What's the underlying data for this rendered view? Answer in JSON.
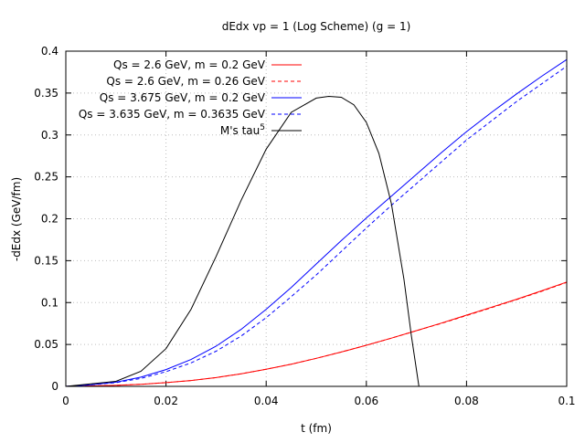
{
  "chart_data": {
    "type": "line",
    "title": "dEdx vp = 1 (Log Scheme) (g = 1)",
    "xlabel": "t (fm)",
    "ylabel": "-dEdx (GeV/fm)",
    "xlim": [
      0,
      0.1
    ],
    "ylim": [
      0,
      0.4
    ],
    "x_ticks": [
      0,
      0.02,
      0.04,
      0.06,
      0.08,
      0.1
    ],
    "x_tick_labels": [
      "0",
      "0.02",
      "0.04",
      "0.06",
      "0.08",
      "0.1"
    ],
    "y_ticks": [
      0,
      0.05,
      0.1,
      0.15,
      0.2,
      0.25,
      0.3,
      0.35,
      0.4
    ],
    "y_tick_labels": [
      "0",
      "0.05",
      "0.1",
      "0.15",
      "0.2",
      "0.25",
      "0.3",
      "0.35",
      "0.4"
    ],
    "grid": true,
    "legend_position": "top-left",
    "series": [
      {
        "name": "Qs = 2.6 GeV, m = 0.2 GeV",
        "color": "#ff0000",
        "dash": "solid",
        "x": [
          0,
          0.005,
          0.01,
          0.015,
          0.02,
          0.025,
          0.03,
          0.035,
          0.04,
          0.045,
          0.05,
          0.055,
          0.06,
          0.065,
          0.07,
          0.075,
          0.08,
          0.085,
          0.09,
          0.095,
          0.1
        ],
        "y": [
          0,
          0.0005,
          0.0012,
          0.0025,
          0.0045,
          0.007,
          0.0105,
          0.015,
          0.0205,
          0.0265,
          0.0335,
          0.041,
          0.049,
          0.0575,
          0.0665,
          0.0755,
          0.085,
          0.0945,
          0.104,
          0.114,
          0.1245
        ]
      },
      {
        "name": "Qs = 2.6 GeV, m = 0.26 GeV",
        "color": "#ff0000",
        "dash": "dashed",
        "x": [
          0,
          0.005,
          0.01,
          0.015,
          0.02,
          0.025,
          0.03,
          0.035,
          0.04,
          0.045,
          0.05,
          0.055,
          0.06,
          0.065,
          0.07,
          0.075,
          0.08,
          0.085,
          0.09,
          0.095,
          0.1
        ],
        "y": [
          0,
          0.0005,
          0.0012,
          0.0025,
          0.0045,
          0.007,
          0.0105,
          0.015,
          0.0205,
          0.0265,
          0.0335,
          0.041,
          0.049,
          0.0575,
          0.0665,
          0.0752,
          0.0845,
          0.094,
          0.1035,
          0.1135,
          0.124
        ]
      },
      {
        "name": "Qs = 3.675 GeV, m = 0.2 GeV",
        "color": "#0000ff",
        "dash": "solid",
        "x": [
          0,
          0.005,
          0.01,
          0.015,
          0.02,
          0.025,
          0.03,
          0.035,
          0.04,
          0.045,
          0.05,
          0.055,
          0.06,
          0.065,
          0.07,
          0.075,
          0.08,
          0.085,
          0.09,
          0.095,
          0.1
        ],
        "y": [
          0,
          0.002,
          0.005,
          0.011,
          0.02,
          0.032,
          0.048,
          0.068,
          0.092,
          0.118,
          0.146,
          0.174,
          0.201,
          0.227,
          0.253,
          0.279,
          0.304,
          0.327,
          0.349,
          0.37,
          0.39
        ]
      },
      {
        "name": "Qs = 3.635 GeV, m = 0.3635 GeV",
        "color": "#0000ff",
        "dash": "dashed",
        "x": [
          0,
          0.005,
          0.01,
          0.015,
          0.02,
          0.025,
          0.03,
          0.035,
          0.04,
          0.045,
          0.05,
          0.055,
          0.06,
          0.065,
          0.07,
          0.075,
          0.08,
          0.085,
          0.09,
          0.095,
          0.1
        ],
        "y": [
          0,
          0.0018,
          0.0045,
          0.0095,
          0.0175,
          0.028,
          0.042,
          0.06,
          0.082,
          0.107,
          0.133,
          0.161,
          0.189,
          0.216,
          0.242,
          0.268,
          0.294,
          0.317,
          0.34,
          0.361,
          0.382
        ]
      },
      {
        "name": "M's tau",
        "name_superscript": "5",
        "color": "#000000",
        "dash": "solid",
        "x": [
          0,
          0.005,
          0.01,
          0.015,
          0.02,
          0.025,
          0.03,
          0.035,
          0.04,
          0.045,
          0.05,
          0.0525,
          0.055,
          0.0575,
          0.06,
          0.0625,
          0.065,
          0.0675,
          0.069,
          0.0705
        ],
        "y": [
          0,
          0.003,
          0.006,
          0.018,
          0.045,
          0.092,
          0.155,
          0.222,
          0.283,
          0.327,
          0.344,
          0.346,
          0.345,
          0.336,
          0.315,
          0.278,
          0.218,
          0.128,
          0.06,
          0
        ]
      }
    ]
  }
}
